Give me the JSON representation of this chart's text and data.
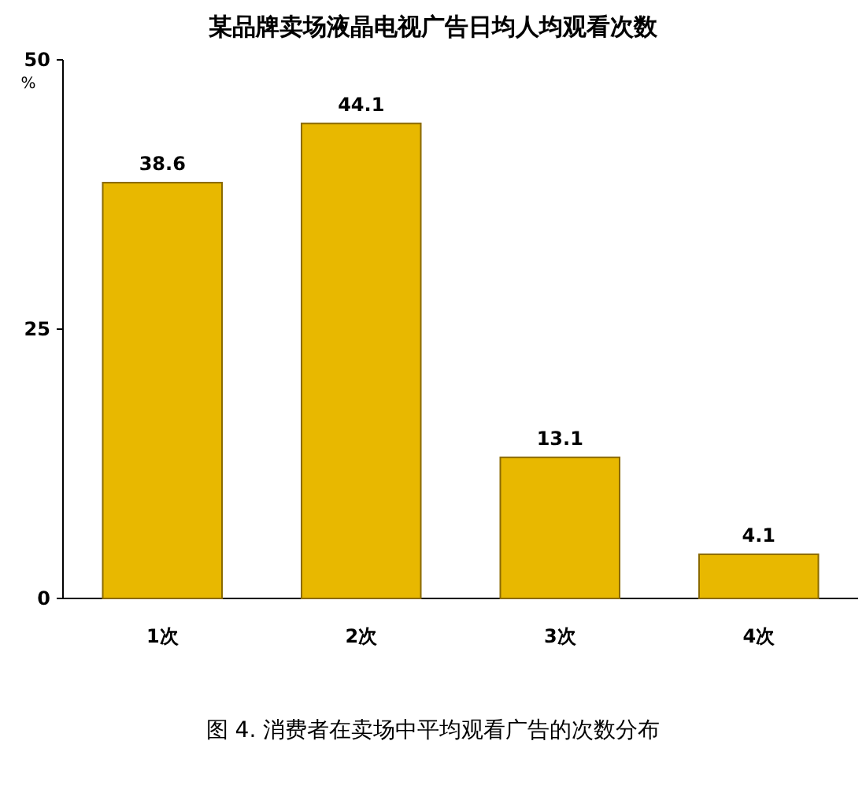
{
  "chart_data": {
    "type": "bar",
    "title": "某品牌卖场液晶电视广告日均人均观看次数",
    "ylabel": "%",
    "categories": [
      "1次",
      "2次",
      "3次",
      "4次"
    ],
    "values": [
      38.6,
      44.1,
      13.1,
      4.1
    ],
    "color": "#e8b800",
    "ylim": [
      0,
      50
    ],
    "yticks": [
      0,
      25,
      50
    ],
    "data_labels": true,
    "annotations": [
      "图 4. 消费者在卖场中平均观看广告的次数分布"
    ]
  }
}
